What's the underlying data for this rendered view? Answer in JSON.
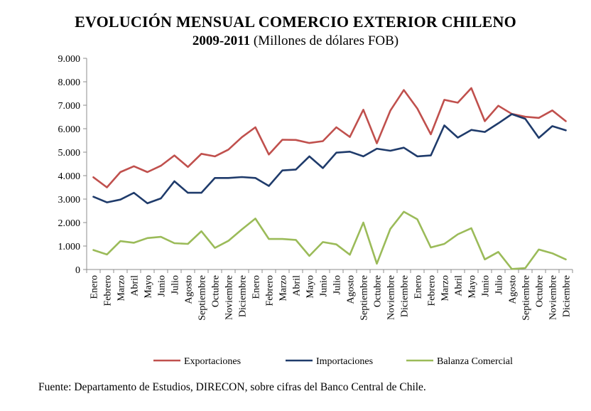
{
  "title": "EVOLUCIÓN MENSUAL COMERCIO EXTERIOR CHILENO",
  "subtitle_years": "2009-2011",
  "subtitle_units": "(Millones de dólares FOB)",
  "source": "Fuente: Departamento de Estudios, DIRECON, sobre cifras del Banco Central de Chile.",
  "chart_data": {
    "type": "line",
    "title": "EVOLUCIÓN MENSUAL COMERCIO EXTERIOR CHILENO",
    "subtitle": "2009-2011 (Millones de dólares FOB)",
    "xlabel": "",
    "ylabel": "",
    "ylim": [
      0,
      9000
    ],
    "yticks": [
      0,
      1000,
      2000,
      3000,
      4000,
      5000,
      6000,
      7000,
      8000,
      9000
    ],
    "ytick_labels": [
      "0",
      "1.000",
      "2.000",
      "3.000",
      "4.000",
      "5.000",
      "6.000",
      "7.000",
      "8.000",
      "9.000"
    ],
    "grid": false,
    "legend_position": "bottom",
    "categories": [
      "Enero",
      "Febrero",
      "Marzo",
      "Abril",
      "Mayo",
      "Junio",
      "Julio",
      "Agosto",
      "Septiembre",
      "Octubre",
      "Noviembre",
      "Diciembre",
      "Enero",
      "Febrero",
      "Marzo",
      "Abril",
      "Mayo",
      "Junio",
      "Julio",
      "Agosto",
      "Septiembre",
      "Octubre",
      "Noviembre",
      "Diciembre",
      "Enero",
      "Febrero",
      "Marzo",
      "Abril",
      "Mayo",
      "Junio",
      "Julio",
      "Agosto",
      "Septiembre",
      "Octubre",
      "Noviembre",
      "Diciembre"
    ],
    "series": [
      {
        "name": "Exportaciones",
        "color": "#c0504d",
        "values": [
          3930,
          3500,
          4150,
          4400,
          4150,
          4420,
          4860,
          4370,
          4930,
          4820,
          5110,
          5640,
          6060,
          4900,
          5530,
          5520,
          5390,
          5470,
          6060,
          5650,
          6810,
          5380,
          6770,
          7650,
          6860,
          5760,
          7230,
          7110,
          7730,
          6320,
          6980,
          6630,
          6510,
          6460,
          6780,
          6320
        ]
      },
      {
        "name": "Importaciones",
        "color": "#1f3b6b",
        "values": [
          3100,
          2860,
          2980,
          3270,
          2820,
          3030,
          3760,
          3270,
          3270,
          3900,
          3900,
          3940,
          3900,
          3560,
          4220,
          4260,
          4820,
          4320,
          4980,
          5020,
          4820,
          5150,
          5060,
          5190,
          4820,
          4860,
          6140,
          5620,
          5950,
          5860,
          6230,
          6620,
          6420,
          5610,
          6110,
          5930
        ]
      },
      {
        "name": "Balanza Comercial",
        "color": "#9bbb59",
        "values": [
          830,
          640,
          1210,
          1140,
          1340,
          1390,
          1120,
          1090,
          1630,
          920,
          1220,
          1710,
          2170,
          1300,
          1300,
          1260,
          580,
          1170,
          1070,
          630,
          2000,
          250,
          1730,
          2460,
          2140,
          940,
          1090,
          1500,
          1760,
          430,
          750,
          20,
          60,
          850,
          690,
          430
        ]
      }
    ]
  }
}
